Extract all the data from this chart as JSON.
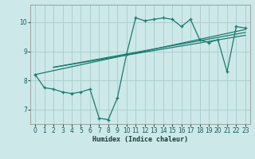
{
  "xlabel": "Humidex (Indice chaleur)",
  "bg_color": "#cce8e8",
  "grid_color": "#aacccc",
  "line_color": "#1a7a6e",
  "xlim": [
    -0.5,
    23.5
  ],
  "ylim": [
    6.5,
    10.6
  ],
  "xticks": [
    0,
    1,
    2,
    3,
    4,
    5,
    6,
    7,
    8,
    9,
    10,
    11,
    12,
    13,
    14,
    15,
    16,
    17,
    18,
    19,
    20,
    21,
    22,
    23
  ],
  "yticks": [
    7,
    8,
    9,
    10
  ],
  "curve1_x": [
    0,
    1,
    2,
    3,
    4,
    5,
    6,
    7,
    8,
    9,
    10,
    11,
    12,
    13,
    14,
    15,
    16,
    17,
    18,
    19,
    20,
    21,
    22,
    23
  ],
  "curve1_y": [
    8.2,
    7.75,
    7.7,
    7.6,
    7.55,
    7.6,
    7.7,
    6.7,
    6.65,
    7.4,
    8.9,
    10.15,
    10.05,
    10.1,
    10.15,
    10.1,
    9.85,
    10.1,
    9.4,
    9.3,
    9.4,
    8.3,
    9.85,
    9.8
  ],
  "line1_x": [
    0,
    23
  ],
  "line1_y": [
    8.2,
    9.75
  ],
  "line2_x": [
    2,
    23
  ],
  "line2_y": [
    8.45,
    9.65
  ],
  "line3_x": [
    2,
    23
  ],
  "line3_y": [
    8.45,
    9.55
  ]
}
